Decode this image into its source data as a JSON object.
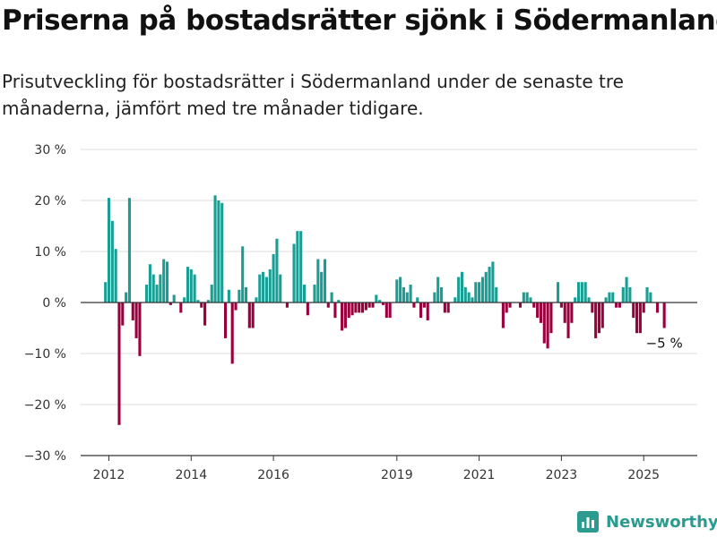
{
  "header": {
    "title": "Priserna på bostadsrätter sjönk i Södermanland",
    "subtitle": "Prisutveckling för bostadsrätter i Södermanland under de senaste tre månaderna, jämfört med tre månader tidigare."
  },
  "brand": {
    "name": "Newsworthy",
    "icon": "bar-chart-logo-icon"
  },
  "colors": {
    "positive": "#1a9e94",
    "negative": "#99003d",
    "grid": "#dddddd",
    "axis": "#333333"
  },
  "chart_data": {
    "type": "bar",
    "title": "",
    "xlabel": "",
    "ylabel": "",
    "ylim": [
      -30,
      30
    ],
    "grid": true,
    "y_ticks": [
      {
        "value": 30,
        "label": "30 %"
      },
      {
        "value": 20,
        "label": "20 %"
      },
      {
        "value": 10,
        "label": "10 %"
      },
      {
        "value": 0,
        "label": "0 %"
      },
      {
        "value": -10,
        "label": "−10 %"
      },
      {
        "value": -20,
        "label": "−20 %"
      },
      {
        "value": -30,
        "label": "−30 %"
      }
    ],
    "x_ticks": [
      {
        "value": "2012",
        "label": "2012"
      },
      {
        "value": "2014",
        "label": "2014"
      },
      {
        "value": "2016",
        "label": "2016"
      },
      {
        "value": "2019",
        "label": "2019"
      },
      {
        "value": "2021",
        "label": "2021"
      },
      {
        "value": "2023",
        "label": "2023"
      },
      {
        "value": "2025",
        "label": "2025"
      }
    ],
    "annotation": {
      "date": "2025-07",
      "label": "−5 %"
    },
    "points": [
      {
        "date": "2011-12",
        "value": 4
      },
      {
        "date": "2012-01",
        "value": 20.5
      },
      {
        "date": "2012-02",
        "value": 16
      },
      {
        "date": "2012-03",
        "value": 10.5
      },
      {
        "date": "2012-04",
        "value": -24
      },
      {
        "date": "2012-05",
        "value": -4.5
      },
      {
        "date": "2012-06",
        "value": 2
      },
      {
        "date": "2012-07",
        "value": 20.5
      },
      {
        "date": "2012-08",
        "value": -3.5
      },
      {
        "date": "2012-09",
        "value": -7
      },
      {
        "date": "2012-10",
        "value": -10.5
      },
      {
        "date": "2012-11",
        "value": 0
      },
      {
        "date": "2012-12",
        "value": 3.5
      },
      {
        "date": "2013-01",
        "value": 7.5
      },
      {
        "date": "2013-02",
        "value": 5.5
      },
      {
        "date": "2013-03",
        "value": 3.5
      },
      {
        "date": "2013-04",
        "value": 5.5
      },
      {
        "date": "2013-05",
        "value": 8.5
      },
      {
        "date": "2013-06",
        "value": 8
      },
      {
        "date": "2013-07",
        "value": -0.5
      },
      {
        "date": "2013-08",
        "value": 1.5
      },
      {
        "date": "2013-09",
        "value": 0
      },
      {
        "date": "2013-10",
        "value": -2
      },
      {
        "date": "2013-11",
        "value": 1
      },
      {
        "date": "2013-12",
        "value": 7
      },
      {
        "date": "2014-01",
        "value": 6.5
      },
      {
        "date": "2014-02",
        "value": 5.5
      },
      {
        "date": "2014-03",
        "value": 0.5
      },
      {
        "date": "2014-04",
        "value": -1
      },
      {
        "date": "2014-05",
        "value": -4.5
      },
      {
        "date": "2014-06",
        "value": 0.5
      },
      {
        "date": "2014-07",
        "value": 3.5
      },
      {
        "date": "2014-08",
        "value": 21
      },
      {
        "date": "2014-09",
        "value": 20
      },
      {
        "date": "2014-10",
        "value": 19.5
      },
      {
        "date": "2014-11",
        "value": -7
      },
      {
        "date": "2014-12",
        "value": 2.5
      },
      {
        "date": "2015-01",
        "value": -12
      },
      {
        "date": "2015-02",
        "value": -1.5
      },
      {
        "date": "2015-03",
        "value": 2.5
      },
      {
        "date": "2015-04",
        "value": 11
      },
      {
        "date": "2015-05",
        "value": 3
      },
      {
        "date": "2015-06",
        "value": -5
      },
      {
        "date": "2015-07",
        "value": -5
      },
      {
        "date": "2015-08",
        "value": 1
      },
      {
        "date": "2015-09",
        "value": 5.5
      },
      {
        "date": "2015-10",
        "value": 6
      },
      {
        "date": "2015-11",
        "value": 5
      },
      {
        "date": "2015-12",
        "value": 6.5
      },
      {
        "date": "2016-01",
        "value": 9.5
      },
      {
        "date": "2016-02",
        "value": 12.5
      },
      {
        "date": "2016-03",
        "value": 5.5
      },
      {
        "date": "2016-04",
        "value": 0
      },
      {
        "date": "2016-05",
        "value": -1
      },
      {
        "date": "2016-06",
        "value": 0
      },
      {
        "date": "2016-07",
        "value": 11.5
      },
      {
        "date": "2016-08",
        "value": 14
      },
      {
        "date": "2016-09",
        "value": 14
      },
      {
        "date": "2016-10",
        "value": 3.5
      },
      {
        "date": "2016-11",
        "value": -2.5
      },
      {
        "date": "2016-12",
        "value": 0
      },
      {
        "date": "2017-01",
        "value": 3.5
      },
      {
        "date": "2017-02",
        "value": 8.5
      },
      {
        "date": "2017-03",
        "value": 6
      },
      {
        "date": "2017-04",
        "value": 8.5
      },
      {
        "date": "2017-05",
        "value": -1
      },
      {
        "date": "2017-06",
        "value": 2
      },
      {
        "date": "2017-07",
        "value": -3
      },
      {
        "date": "2017-08",
        "value": 0.5
      },
      {
        "date": "2017-09",
        "value": -5.5
      },
      {
        "date": "2017-10",
        "value": -5
      },
      {
        "date": "2017-11",
        "value": -3
      },
      {
        "date": "2017-12",
        "value": -2.5
      },
      {
        "date": "2018-01",
        "value": -2
      },
      {
        "date": "2018-02",
        "value": -2
      },
      {
        "date": "2018-03",
        "value": -2
      },
      {
        "date": "2018-04",
        "value": -1.5
      },
      {
        "date": "2018-05",
        "value": -1
      },
      {
        "date": "2018-06",
        "value": -1
      },
      {
        "date": "2018-07",
        "value": 1.5
      },
      {
        "date": "2018-08",
        "value": 0.5
      },
      {
        "date": "2018-09",
        "value": -0.5
      },
      {
        "date": "2018-10",
        "value": -3
      },
      {
        "date": "2018-11",
        "value": -3
      },
      {
        "date": "2018-12",
        "value": 0
      },
      {
        "date": "2019-01",
        "value": 4.5
      },
      {
        "date": "2019-02",
        "value": 5
      },
      {
        "date": "2019-03",
        "value": 3
      },
      {
        "date": "2019-04",
        "value": 2
      },
      {
        "date": "2019-05",
        "value": 3.5
      },
      {
        "date": "2019-06",
        "value": -1
      },
      {
        "date": "2019-07",
        "value": 1
      },
      {
        "date": "2019-08",
        "value": -3
      },
      {
        "date": "2019-09",
        "value": -1
      },
      {
        "date": "2019-10",
        "value": -3.5
      },
      {
        "date": "2019-11",
        "value": 0
      },
      {
        "date": "2019-12",
        "value": 2
      },
      {
        "date": "2020-01",
        "value": 5
      },
      {
        "date": "2020-02",
        "value": 3
      },
      {
        "date": "2020-03",
        "value": -2
      },
      {
        "date": "2020-04",
        "value": -2
      },
      {
        "date": "2020-05",
        "value": 0
      },
      {
        "date": "2020-06",
        "value": 1
      },
      {
        "date": "2020-07",
        "value": 5
      },
      {
        "date": "2020-08",
        "value": 6
      },
      {
        "date": "2020-09",
        "value": 3
      },
      {
        "date": "2020-10",
        "value": 2
      },
      {
        "date": "2020-11",
        "value": 1
      },
      {
        "date": "2020-12",
        "value": 4
      },
      {
        "date": "2021-01",
        "value": 4
      },
      {
        "date": "2021-02",
        "value": 5
      },
      {
        "date": "2021-03",
        "value": 6
      },
      {
        "date": "2021-04",
        "value": 7
      },
      {
        "date": "2021-05",
        "value": 8
      },
      {
        "date": "2021-06",
        "value": 3
      },
      {
        "date": "2021-07",
        "value": 0
      },
      {
        "date": "2021-08",
        "value": -5
      },
      {
        "date": "2021-09",
        "value": -2
      },
      {
        "date": "2021-10",
        "value": -1
      },
      {
        "date": "2021-11",
        "value": 0
      },
      {
        "date": "2021-12",
        "value": 0
      },
      {
        "date": "2022-01",
        "value": -1
      },
      {
        "date": "2022-02",
        "value": 2
      },
      {
        "date": "2022-03",
        "value": 2
      },
      {
        "date": "2022-04",
        "value": 1
      },
      {
        "date": "2022-05",
        "value": -1
      },
      {
        "date": "2022-06",
        "value": -3
      },
      {
        "date": "2022-07",
        "value": -4
      },
      {
        "date": "2022-08",
        "value": -8
      },
      {
        "date": "2022-09",
        "value": -9
      },
      {
        "date": "2022-10",
        "value": -6
      },
      {
        "date": "2022-11",
        "value": 0
      },
      {
        "date": "2022-12",
        "value": 4
      },
      {
        "date": "2023-01",
        "value": -1
      },
      {
        "date": "2023-02",
        "value": -4
      },
      {
        "date": "2023-03",
        "value": -7
      },
      {
        "date": "2023-04",
        "value": -4
      },
      {
        "date": "2023-05",
        "value": 1
      },
      {
        "date": "2023-06",
        "value": 4
      },
      {
        "date": "2023-07",
        "value": 4
      },
      {
        "date": "2023-08",
        "value": 4
      },
      {
        "date": "2023-09",
        "value": 1
      },
      {
        "date": "2023-10",
        "value": -2
      },
      {
        "date": "2023-11",
        "value": -7
      },
      {
        "date": "2023-12",
        "value": -6
      },
      {
        "date": "2024-01",
        "value": -5
      },
      {
        "date": "2024-02",
        "value": 1
      },
      {
        "date": "2024-03",
        "value": 2
      },
      {
        "date": "2024-04",
        "value": 2
      },
      {
        "date": "2024-05",
        "value": -1
      },
      {
        "date": "2024-06",
        "value": -1
      },
      {
        "date": "2024-07",
        "value": 3
      },
      {
        "date": "2024-08",
        "value": 5
      },
      {
        "date": "2024-09",
        "value": 3
      },
      {
        "date": "2024-10",
        "value": -3
      },
      {
        "date": "2024-11",
        "value": -6
      },
      {
        "date": "2024-12",
        "value": -6
      },
      {
        "date": "2025-01",
        "value": -2
      },
      {
        "date": "2025-02",
        "value": 3
      },
      {
        "date": "2025-03",
        "value": 2
      },
      {
        "date": "2025-04",
        "value": 0
      },
      {
        "date": "2025-05",
        "value": -2
      },
      {
        "date": "2025-06",
        "value": 0
      },
      {
        "date": "2025-07",
        "value": -5
      }
    ]
  }
}
